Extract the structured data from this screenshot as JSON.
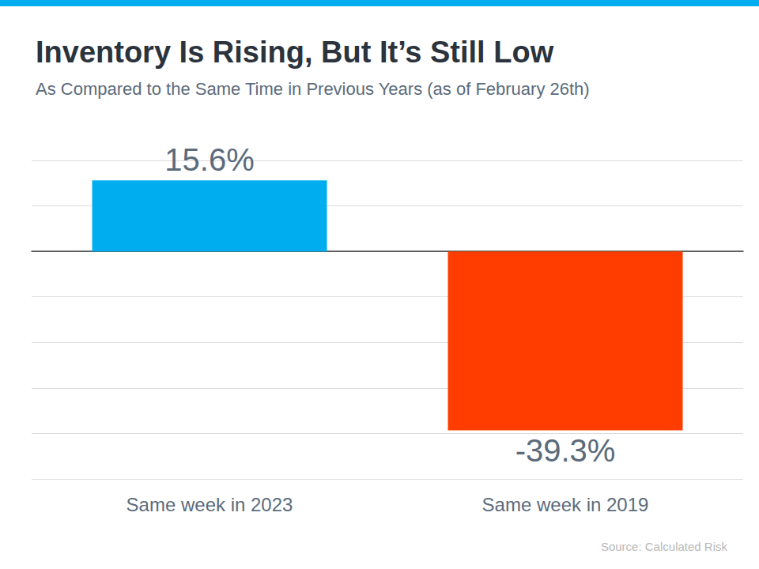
{
  "chart_data": {
    "type": "bar",
    "title": "Inventory Is Rising, But It’s Still Low",
    "subtitle": "As Compared to the Same Time in Previous Years (as of February 26th)",
    "source": "Source: Calculated Risk",
    "categories": [
      "Same week in 2023",
      "Same week in 2019"
    ],
    "values": [
      15.6,
      -39.3
    ],
    "value_labels": [
      "15.6%",
      "-39.3%"
    ],
    "colors": [
      "#00aeef",
      "#ff3d00"
    ],
    "ylim": [
      -50,
      20
    ],
    "yticks": [
      -50,
      -40,
      -30,
      -20,
      -10,
      0,
      10,
      20
    ],
    "grid": true,
    "data_labels": true,
    "tick_labels": "x"
  }
}
